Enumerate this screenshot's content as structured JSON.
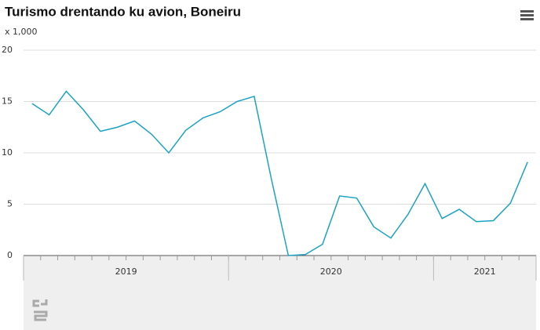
{
  "chart_data": {
    "type": "line",
    "title": "Turismo drentando ku avion, Boneiru",
    "subtitle": "x 1,000",
    "categories": [
      "2019",
      "2019",
      "2019",
      "2019",
      "2019",
      "2019",
      "2019",
      "2019",
      "2019",
      "2019",
      "2019",
      "2019",
      "2020",
      "2020",
      "2020",
      "2020",
      "2020",
      "2020",
      "2020",
      "2020",
      "2020",
      "2020",
      "2020",
      "2020",
      "2021",
      "2021",
      "2021",
      "2021",
      "2021",
      "2021"
    ],
    "series": [
      {
        "name": "Turismo",
        "color": "#1ca3c4",
        "values": [
          14.8,
          13.7,
          16.0,
          14.2,
          12.1,
          12.5,
          13.1,
          11.8,
          10.0,
          12.2,
          13.4,
          14.0,
          15.0,
          15.5,
          7.5,
          0.0,
          0.1,
          1.1,
          5.8,
          5.6,
          2.8,
          1.7,
          4.0,
          7.0,
          3.6,
          4.5,
          3.3,
          3.4,
          5.1,
          9.1
        ]
      }
    ],
    "ylim": [
      0,
      20
    ],
    "yticks": [
      0,
      5,
      10,
      15,
      20
    ],
    "grid": true
  }
}
